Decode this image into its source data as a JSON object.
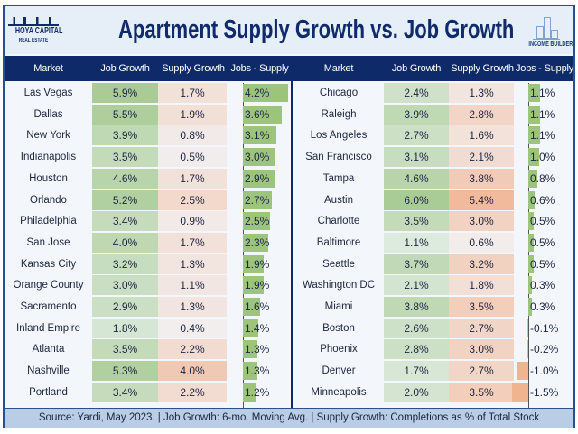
{
  "header": {
    "title": "Apartment Supply Growth vs. Job Growth",
    "logo_left": "HOYA CAPITAL",
    "logo_left_sub": "REAL ESTATE",
    "logo_right": "INCOME BUILDER"
  },
  "columns": [
    "Market",
    "Job Growth",
    "Supply Growth",
    "Jobs - Supply"
  ],
  "footer": "Source: Yardi, May 2023. | Job Growth: 6-mo. Moving Avg. | Supply Growth: Completions as % of Total Stock",
  "colors": {
    "green": "#8fbc6a",
    "orange": "#f0a77c",
    "navy": "#0f2a69"
  },
  "chart_data": {
    "type": "table",
    "title": "Apartment Supply Growth vs. Job Growth",
    "left": [
      {
        "market": "Las Vegas",
        "job": "5.9%",
        "supply": "1.7%",
        "diff": "4.2%",
        "j": 5.9,
        "s": 1.7,
        "d": 4.2
      },
      {
        "market": "Dallas",
        "job": "5.5%",
        "supply": "1.9%",
        "diff": "3.6%",
        "j": 5.5,
        "s": 1.9,
        "d": 3.6
      },
      {
        "market": "New York",
        "job": "3.9%",
        "supply": "0.8%",
        "diff": "3.1%",
        "j": 3.9,
        "s": 0.8,
        "d": 3.1
      },
      {
        "market": "Indianapolis",
        "job": "3.5%",
        "supply": "0.5%",
        "diff": "3.0%",
        "j": 3.5,
        "s": 0.5,
        "d": 3.0
      },
      {
        "market": "Houston",
        "job": "4.6%",
        "supply": "1.7%",
        "diff": "2.9%",
        "j": 4.6,
        "s": 1.7,
        "d": 2.9
      },
      {
        "market": "Orlando",
        "job": "5.2%",
        "supply": "2.5%",
        "diff": "2.7%",
        "j": 5.2,
        "s": 2.5,
        "d": 2.7
      },
      {
        "market": "Philadelphia",
        "job": "3.4%",
        "supply": "0.9%",
        "diff": "2.5%",
        "j": 3.4,
        "s": 0.9,
        "d": 2.5
      },
      {
        "market": "San Jose",
        "job": "4.0%",
        "supply": "1.7%",
        "diff": "2.3%",
        "j": 4.0,
        "s": 1.7,
        "d": 2.3
      },
      {
        "market": "Kansas City",
        "job": "3.2%",
        "supply": "1.3%",
        "diff": "1.9%",
        "j": 3.2,
        "s": 1.3,
        "d": 1.9
      },
      {
        "market": "Orange County",
        "job": "3.0%",
        "supply": "1.1%",
        "diff": "1.9%",
        "j": 3.0,
        "s": 1.1,
        "d": 1.9
      },
      {
        "market": "Sacramento",
        "job": "2.9%",
        "supply": "1.3%",
        "diff": "1.6%",
        "j": 2.9,
        "s": 1.3,
        "d": 1.6
      },
      {
        "market": "Inland Empire",
        "job": "1.8%",
        "supply": "0.4%",
        "diff": "1.4%",
        "j": 1.8,
        "s": 0.4,
        "d": 1.4
      },
      {
        "market": "Atlanta",
        "job": "3.5%",
        "supply": "2.2%",
        "diff": "1.3%",
        "j": 3.5,
        "s": 2.2,
        "d": 1.3
      },
      {
        "market": "Nashville",
        "job": "5.3%",
        "supply": "4.0%",
        "diff": "1.3%",
        "j": 5.3,
        "s": 4.0,
        "d": 1.3
      },
      {
        "market": "Portland",
        "job": "3.4%",
        "supply": "2.2%",
        "diff": "1.2%",
        "j": 3.4,
        "s": 2.2,
        "d": 1.2
      }
    ],
    "right": [
      {
        "market": "Chicago",
        "job": "2.4%",
        "supply": "1.3%",
        "diff": "1.1%",
        "j": 2.4,
        "s": 1.3,
        "d": 1.1
      },
      {
        "market": "Raleigh",
        "job": "3.9%",
        "supply": "2.8%",
        "diff": "1.1%",
        "j": 3.9,
        "s": 2.8,
        "d": 1.1
      },
      {
        "market": "Los Angeles",
        "job": "2.7%",
        "supply": "1.6%",
        "diff": "1.1%",
        "j": 2.7,
        "s": 1.6,
        "d": 1.1
      },
      {
        "market": "San Francisco",
        "job": "3.1%",
        "supply": "2.1%",
        "diff": "1.0%",
        "j": 3.1,
        "s": 2.1,
        "d": 1.0
      },
      {
        "market": "Tampa",
        "job": "4.6%",
        "supply": "3.8%",
        "diff": "0.8%",
        "j": 4.6,
        "s": 3.8,
        "d": 0.8
      },
      {
        "market": "Austin",
        "job": "6.0%",
        "supply": "5.4%",
        "diff": "0.6%",
        "j": 6.0,
        "s": 5.4,
        "d": 0.6
      },
      {
        "market": "Charlotte",
        "job": "3.5%",
        "supply": "3.0%",
        "diff": "0.5%",
        "j": 3.5,
        "s": 3.0,
        "d": 0.5
      },
      {
        "market": "Baltimore",
        "job": "1.1%",
        "supply": "0.6%",
        "diff": "0.5%",
        "j": 1.1,
        "s": 0.6,
        "d": 0.5
      },
      {
        "market": "Seattle",
        "job": "3.7%",
        "supply": "3.2%",
        "diff": "0.5%",
        "j": 3.7,
        "s": 3.2,
        "d": 0.5
      },
      {
        "market": "Washington DC",
        "job": "2.1%",
        "supply": "1.8%",
        "diff": "0.3%",
        "j": 2.1,
        "s": 1.8,
        "d": 0.3
      },
      {
        "market": "Miami",
        "job": "3.8%",
        "supply": "3.5%",
        "diff": "0.3%",
        "j": 3.8,
        "s": 3.5,
        "d": 0.3
      },
      {
        "market": "Boston",
        "job": "2.6%",
        "supply": "2.7%",
        "diff": "-0.1%",
        "j": 2.6,
        "s": 2.7,
        "d": -0.1
      },
      {
        "market": "Phoenix",
        "job": "2.8%",
        "supply": "3.0%",
        "diff": "-0.2%",
        "j": 2.8,
        "s": 3.0,
        "d": -0.2
      },
      {
        "market": "Denver",
        "job": "1.7%",
        "supply": "2.7%",
        "diff": "-1.0%",
        "j": 1.7,
        "s": 2.7,
        "d": -1.0
      },
      {
        "market": "Minneapolis",
        "job": "2.0%",
        "supply": "3.5%",
        "diff": "-1.5%",
        "j": 2.0,
        "s": 3.5,
        "d": -1.5
      }
    ]
  }
}
